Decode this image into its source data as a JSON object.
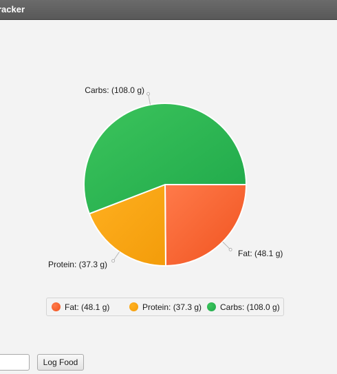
{
  "window": {
    "title": "racker"
  },
  "chart_data": {
    "type": "pie",
    "unit": "g",
    "slices": [
      {
        "name": "Fat",
        "value": 48.1,
        "label": "Fat: (48.1 g)",
        "color": "#f0531f",
        "color_light": "#ff7a4a"
      },
      {
        "name": "Protein",
        "value": 37.3,
        "label": "Protein: (37.3 g)",
        "color": "#f39c0a",
        "color_light": "#ffb020"
      },
      {
        "name": "Carbs",
        "value": 108.0,
        "label": "Carbs: (108.0 g)",
        "color": "#1fa84a",
        "color_light": "#3cc45c"
      }
    ],
    "legend_position": "bottom"
  },
  "form": {
    "food_input_value": "",
    "log_button_label": "Log Food"
  }
}
